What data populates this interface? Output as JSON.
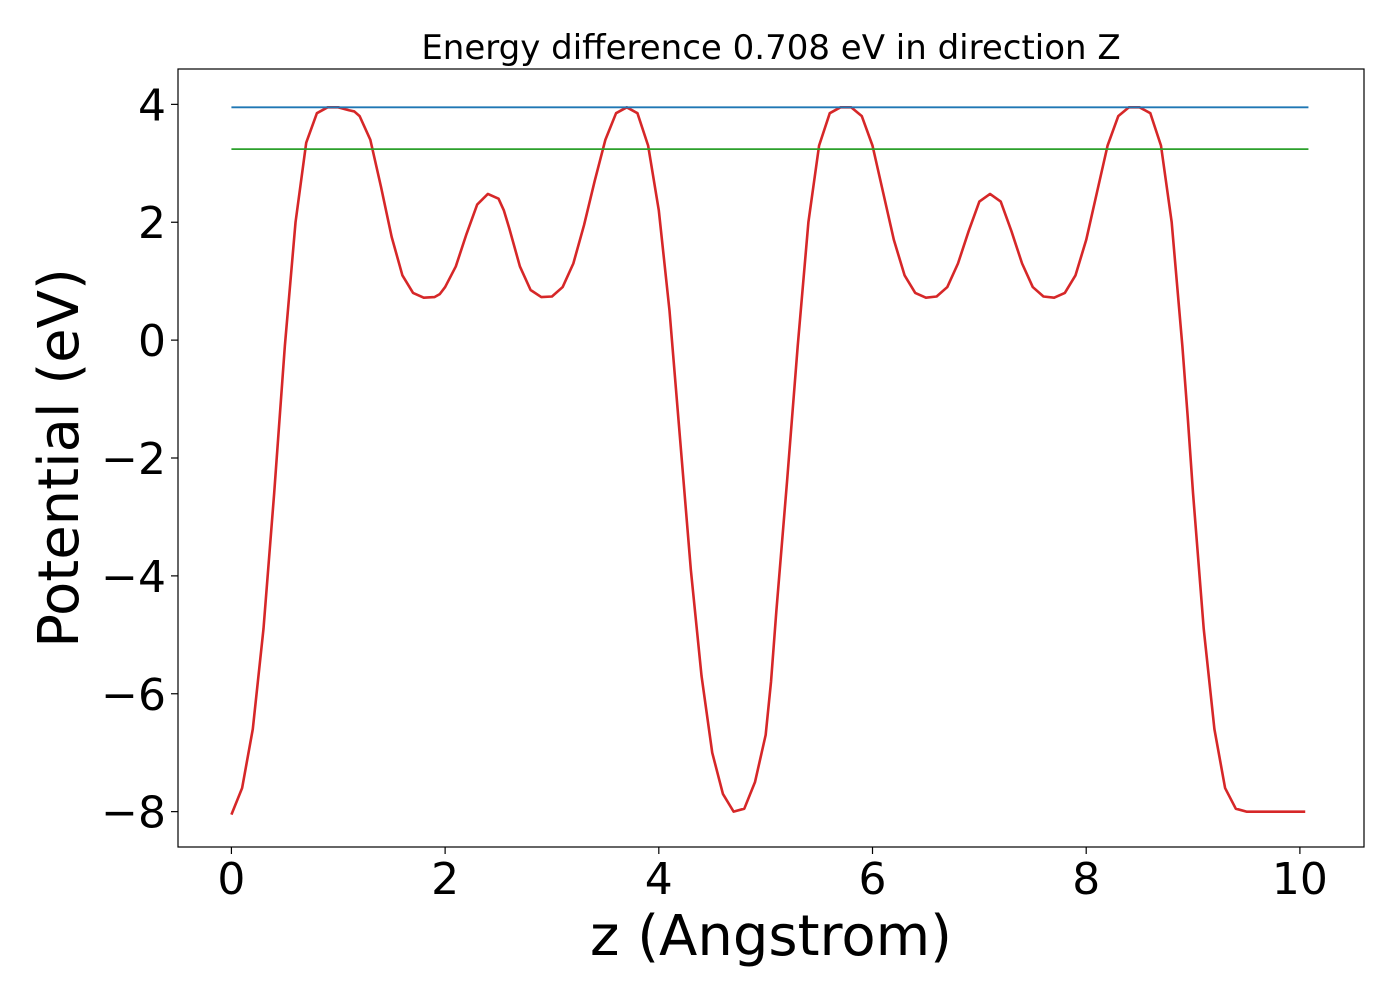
{
  "chart_data": {
    "type": "line",
    "title": "Energy difference 0.708 eV in direction Z",
    "xlabel": "z (Angstrom)",
    "ylabel": "Potential (eV)",
    "xlim": [
      -0.5,
      10.6
    ],
    "ylim": [
      -8.6,
      4.6
    ],
    "xticks": [
      0,
      2,
      4,
      6,
      8,
      10
    ],
    "xtick_labels": [
      "0",
      "2",
      "4",
      "6",
      "8",
      "10"
    ],
    "yticks": [
      4,
      2,
      0,
      -2,
      -4,
      -6,
      -8
    ],
    "ytick_labels": [
      "4",
      "2",
      "0",
      "−2",
      "−4",
      "−6",
      "−8"
    ],
    "grid": false,
    "legend": "none",
    "series": [
      {
        "color": "#d62728",
        "kind": "curve",
        "x": [
          0,
          0.1,
          0.2,
          0.3,
          0.4,
          0.5,
          0.6,
          0.7,
          0.8,
          0.9,
          1.0,
          1.1,
          1.15,
          1.2,
          1.3,
          1.4,
          1.5,
          1.6,
          1.7,
          1.8,
          1.9,
          1.95,
          2.0,
          2.1,
          2.2,
          2.3,
          2.4,
          2.5,
          2.55,
          2.6,
          2.7,
          2.8,
          2.9,
          3.0,
          3.1,
          3.2,
          3.3,
          3.4,
          3.5,
          3.6,
          3.7,
          3.8,
          3.9,
          4.0,
          4.1,
          4.2,
          4.3,
          4.4,
          4.5,
          4.6,
          4.7,
          4.8,
          4.9,
          5.0,
          5.05,
          5.1,
          5.2,
          5.3,
          5.4,
          5.5,
          5.6,
          5.7,
          5.8,
          5.9,
          6.0,
          6.1,
          6.2,
          6.3,
          6.4,
          6.5,
          6.6,
          6.7,
          6.8,
          6.9,
          7.0,
          7.1,
          7.2,
          7.3,
          7.4,
          7.5,
          7.6,
          7.7,
          7.8,
          7.9,
          8.0,
          8.1,
          8.2,
          8.3,
          8.4,
          8.5,
          8.6,
          8.7,
          8.8,
          8.9,
          8.95,
          9.0,
          9.1,
          9.2,
          9.3,
          9.4,
          9.5,
          9.6,
          9.7,
          9.8,
          9.9,
          10.05
        ],
        "y": [
          -8.05,
          -7.6,
          -6.6,
          -4.9,
          -2.6,
          -0.1,
          2.0,
          3.35,
          3.85,
          3.95,
          3.95,
          3.9,
          3.88,
          3.8,
          3.4,
          2.6,
          1.75,
          1.1,
          0.8,
          0.72,
          0.73,
          0.78,
          0.9,
          1.25,
          1.8,
          2.3,
          2.48,
          2.4,
          2.2,
          1.9,
          1.25,
          0.85,
          0.73,
          0.74,
          0.9,
          1.3,
          1.95,
          2.7,
          3.4,
          3.85,
          3.95,
          3.85,
          3.3,
          2.2,
          0.5,
          -1.7,
          -3.9,
          -5.7,
          -7.0,
          -7.7,
          -8.0,
          -7.95,
          -7.5,
          -6.7,
          -5.8,
          -4.6,
          -2.4,
          -0.1,
          2.0,
          3.3,
          3.85,
          3.95,
          3.95,
          3.8,
          3.3,
          2.5,
          1.7,
          1.1,
          0.8,
          0.72,
          0.74,
          0.9,
          1.3,
          1.85,
          2.35,
          2.48,
          2.35,
          1.85,
          1.3,
          0.9,
          0.74,
          0.72,
          0.8,
          1.1,
          1.7,
          2.5,
          3.3,
          3.8,
          3.95,
          3.95,
          3.85,
          3.3,
          2.0,
          -0.1,
          -1.3,
          -2.6,
          -4.9,
          -6.6,
          -7.6,
          -7.95,
          -8.0,
          -8.0,
          -8.0,
          -8.0,
          -8.0,
          -8.0
        ]
      },
      {
        "color": "#1f77b4",
        "kind": "hline",
        "x": [
          0,
          10.08
        ],
        "y": [
          3.95,
          3.95
        ]
      },
      {
        "color": "#2ca02c",
        "kind": "hline",
        "x": [
          0,
          10.08
        ],
        "y": [
          3.24,
          3.24
        ]
      }
    ]
  }
}
